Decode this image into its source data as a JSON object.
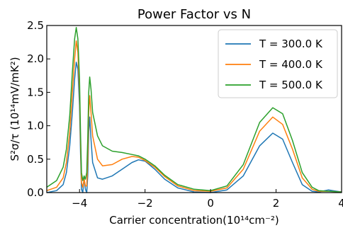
{
  "chart_data": {
    "type": "line",
    "title": "Power Factor vs N",
    "xlabel": "Carrier concentration(10¹⁴cm⁻²)",
    "ylabel": "S²σ/τ   (10¹⁴mV/mK²)",
    "xlim": [
      -5,
      4
    ],
    "ylim": [
      0,
      2.5
    ],
    "x_ticks": [
      -4,
      -2,
      0,
      2,
      4
    ],
    "x_tick_labels": [
      "−4",
      "−2",
      "0",
      "2",
      "4"
    ],
    "y_ticks": [
      0.0,
      0.5,
      1.0,
      1.5,
      2.0,
      2.5
    ],
    "y_tick_labels": [
      "0.0",
      "0.5",
      "1.0",
      "1.5",
      "2.0",
      "2.5"
    ],
    "grid": false,
    "legend_position": "top-right",
    "series": [
      {
        "name": "T = 300.0 K",
        "color": "#1f77b4",
        "points": [
          [
            -5.0,
            0.0
          ],
          [
            -4.7,
            0.03
          ],
          [
            -4.5,
            0.12
          ],
          [
            -4.4,
            0.3
          ],
          [
            -4.3,
            0.7
          ],
          [
            -4.22,
            1.2
          ],
          [
            -4.15,
            1.7
          ],
          [
            -4.1,
            1.95
          ],
          [
            -4.05,
            1.85
          ],
          [
            -4.0,
            1.3
          ],
          [
            -3.97,
            0.6
          ],
          [
            -3.94,
            0.05
          ],
          [
            -3.9,
            0.0
          ],
          [
            -3.86,
            0.22
          ],
          [
            -3.82,
            0.05
          ],
          [
            -3.78,
            0.0
          ],
          [
            -3.75,
            0.25
          ],
          [
            -3.72,
            0.9
          ],
          [
            -3.69,
            1.13
          ],
          [
            -3.65,
            0.8
          ],
          [
            -3.6,
            0.45
          ],
          [
            -3.45,
            0.22
          ],
          [
            -3.3,
            0.2
          ],
          [
            -3.0,
            0.25
          ],
          [
            -2.7,
            0.35
          ],
          [
            -2.4,
            0.45
          ],
          [
            -2.2,
            0.49
          ],
          [
            -2.0,
            0.47
          ],
          [
            -1.7,
            0.35
          ],
          [
            -1.4,
            0.2
          ],
          [
            -1.0,
            0.07
          ],
          [
            -0.5,
            0.01
          ],
          [
            0.0,
            0.0
          ],
          [
            0.5,
            0.04
          ],
          [
            1.0,
            0.25
          ],
          [
            1.5,
            0.7
          ],
          [
            1.9,
            0.89
          ],
          [
            2.2,
            0.8
          ],
          [
            2.5,
            0.45
          ],
          [
            2.8,
            0.12
          ],
          [
            3.1,
            0.02
          ],
          [
            3.3,
            0.01
          ],
          [
            3.6,
            0.04
          ],
          [
            3.85,
            0.02
          ],
          [
            4.0,
            0.01
          ]
        ]
      },
      {
        "name": "T = 400.0 K",
        "color": "#ff7f0e",
        "points": [
          [
            -5.0,
            0.03
          ],
          [
            -4.7,
            0.08
          ],
          [
            -4.5,
            0.22
          ],
          [
            -4.4,
            0.45
          ],
          [
            -4.3,
            0.9
          ],
          [
            -4.22,
            1.5
          ],
          [
            -4.15,
            2.0
          ],
          [
            -4.1,
            2.27
          ],
          [
            -4.05,
            2.1
          ],
          [
            -4.0,
            1.5
          ],
          [
            -3.97,
            0.75
          ],
          [
            -3.94,
            0.15
          ],
          [
            -3.9,
            0.08
          ],
          [
            -3.86,
            0.2
          ],
          [
            -3.82,
            0.1
          ],
          [
            -3.78,
            0.1
          ],
          [
            -3.75,
            0.5
          ],
          [
            -3.72,
            1.2
          ],
          [
            -3.69,
            1.45
          ],
          [
            -3.65,
            1.2
          ],
          [
            -3.6,
            0.85
          ],
          [
            -3.45,
            0.5
          ],
          [
            -3.3,
            0.4
          ],
          [
            -3.0,
            0.42
          ],
          [
            -2.7,
            0.5
          ],
          [
            -2.4,
            0.54
          ],
          [
            -2.2,
            0.53
          ],
          [
            -2.0,
            0.48
          ],
          [
            -1.7,
            0.38
          ],
          [
            -1.4,
            0.24
          ],
          [
            -1.0,
            0.1
          ],
          [
            -0.5,
            0.03
          ],
          [
            0.0,
            0.02
          ],
          [
            0.5,
            0.07
          ],
          [
            1.0,
            0.35
          ],
          [
            1.5,
            0.92
          ],
          [
            1.9,
            1.13
          ],
          [
            2.2,
            1.02
          ],
          [
            2.5,
            0.65
          ],
          [
            2.8,
            0.22
          ],
          [
            3.1,
            0.05
          ],
          [
            3.3,
            0.02
          ],
          [
            3.6,
            0.02
          ],
          [
            4.0,
            0.01
          ]
        ]
      },
      {
        "name": "T = 500.0 K",
        "color": "#2ca02c",
        "points": [
          [
            -5.0,
            0.08
          ],
          [
            -4.7,
            0.18
          ],
          [
            -4.5,
            0.38
          ],
          [
            -4.4,
            0.65
          ],
          [
            -4.3,
            1.15
          ],
          [
            -4.22,
            1.8
          ],
          [
            -4.15,
            2.3
          ],
          [
            -4.1,
            2.47
          ],
          [
            -4.05,
            2.3
          ],
          [
            -4.0,
            1.7
          ],
          [
            -3.97,
            0.9
          ],
          [
            -3.94,
            0.3
          ],
          [
            -3.9,
            0.18
          ],
          [
            -3.86,
            0.25
          ],
          [
            -3.82,
            0.2
          ],
          [
            -3.78,
            0.3
          ],
          [
            -3.75,
            0.8
          ],
          [
            -3.72,
            1.5
          ],
          [
            -3.69,
            1.73
          ],
          [
            -3.65,
            1.55
          ],
          [
            -3.6,
            1.2
          ],
          [
            -3.45,
            0.85
          ],
          [
            -3.3,
            0.7
          ],
          [
            -3.0,
            0.62
          ],
          [
            -2.7,
            0.6
          ],
          [
            -2.4,
            0.57
          ],
          [
            -2.2,
            0.55
          ],
          [
            -2.0,
            0.5
          ],
          [
            -1.7,
            0.4
          ],
          [
            -1.4,
            0.26
          ],
          [
            -1.0,
            0.12
          ],
          [
            -0.5,
            0.05
          ],
          [
            0.0,
            0.03
          ],
          [
            0.5,
            0.1
          ],
          [
            1.0,
            0.42
          ],
          [
            1.5,
            1.05
          ],
          [
            1.9,
            1.27
          ],
          [
            2.2,
            1.18
          ],
          [
            2.5,
            0.78
          ],
          [
            2.8,
            0.3
          ],
          [
            3.1,
            0.08
          ],
          [
            3.3,
            0.03
          ],
          [
            3.6,
            0.02
          ],
          [
            4.0,
            0.01
          ]
        ]
      }
    ]
  }
}
